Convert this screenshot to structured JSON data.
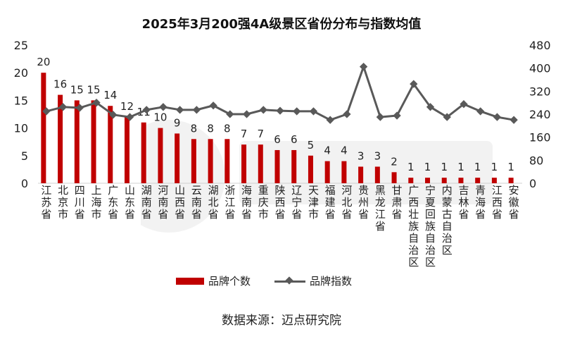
{
  "chart_data": {
    "type": "bar+line",
    "title": "2025年3月200强4A级景区省份分布与指数均值",
    "categories": [
      "江苏省",
      "北京市",
      "四川省",
      "上海市",
      "广东省",
      "山东省",
      "湖南省",
      "河南省",
      "山西省",
      "云南省",
      "湖北省",
      "浙江省",
      "海南省",
      "重庆市",
      "陕西省",
      "辽宁省",
      "天津市",
      "福建省",
      "河北省",
      "贵州省",
      "黑龙江省",
      "甘肃省",
      "广西壮族自治区",
      "宁夏回族自治区",
      "内蒙古自治区",
      "吉林省",
      "青海省",
      "江西省",
      "安徽省"
    ],
    "series": [
      {
        "name": "品牌个数",
        "type": "bar",
        "axis": "left",
        "color": "#c00000",
        "values": [
          20,
          16,
          15,
          15,
          14,
          12,
          11,
          10,
          9,
          8,
          8,
          8,
          7,
          7,
          6,
          6,
          5,
          4,
          4,
          3,
          3,
          2,
          1,
          1,
          1,
          1,
          1,
          1,
          1
        ]
      },
      {
        "name": "品牌指数",
        "type": "line",
        "axis": "right",
        "color": "#595959",
        "values": [
          250,
          265,
          262,
          280,
          238,
          230,
          255,
          265,
          255,
          255,
          270,
          240,
          240,
          255,
          252,
          250,
          250,
          220,
          240,
          405,
          230,
          235,
          345,
          265,
          230,
          275,
          250,
          230,
          220
        ]
      }
    ],
    "ylim_left": [
      0,
      25
    ],
    "yticks_left": [
      0,
      5,
      10,
      15,
      20,
      25
    ],
    "ylim_right": [
      0,
      480
    ],
    "yticks_right": [
      0,
      80,
      160,
      240,
      320,
      400,
      480
    ],
    "legend": [
      "品牌个数",
      "品牌指数"
    ],
    "grid": false,
    "source": "数据来源：迈点研究院"
  }
}
